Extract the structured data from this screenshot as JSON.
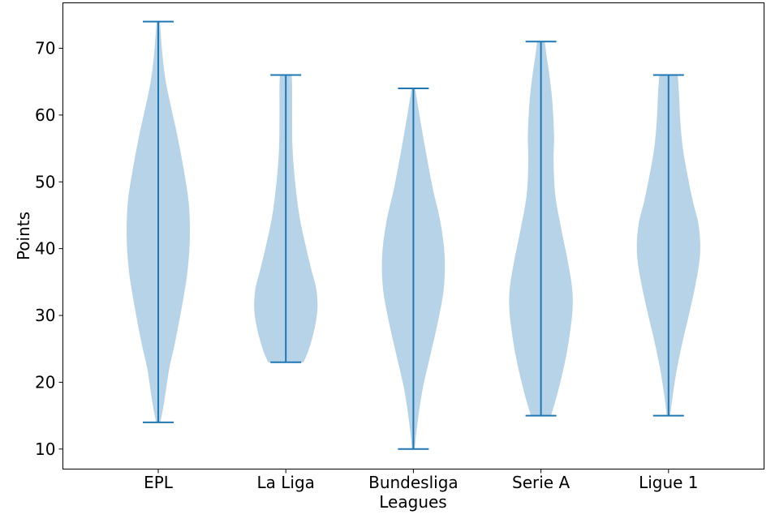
{
  "chart_data": {
    "type": "violin",
    "xlabel": "Leagues",
    "ylabel": "Points",
    "ylim": [
      7,
      76.8
    ],
    "yticks": [
      10,
      20,
      30,
      40,
      50,
      60,
      70
    ],
    "grid": false,
    "colors": {
      "body": "#1f77b4",
      "body_alpha": 0.32,
      "line": "#1f77b4"
    },
    "categories": [
      "EPL",
      "La Liga",
      "Bundesliga",
      "Serie A",
      "Ligue 1"
    ],
    "series": [
      {
        "category": "EPL",
        "min": 14,
        "max": 74,
        "density": [
          [
            14,
            0.05
          ],
          [
            17,
            0.14
          ],
          [
            22,
            0.26
          ],
          [
            26,
            0.4
          ],
          [
            32,
            0.58
          ],
          [
            37,
            0.7
          ],
          [
            42,
            0.75
          ],
          [
            47,
            0.72
          ],
          [
            52,
            0.6
          ],
          [
            57,
            0.45
          ],
          [
            61,
            0.31
          ],
          [
            65,
            0.18
          ],
          [
            69,
            0.1
          ],
          [
            74,
            0.04
          ]
        ]
      },
      {
        "category": "La Liga",
        "min": 23,
        "max": 66,
        "density": [
          [
            23,
            0.42
          ],
          [
            25,
            0.55
          ],
          [
            28,
            0.68
          ],
          [
            31,
            0.75
          ],
          [
            34,
            0.72
          ],
          [
            37,
            0.6
          ],
          [
            41,
            0.45
          ],
          [
            45,
            0.32
          ],
          [
            50,
            0.22
          ],
          [
            55,
            0.16
          ],
          [
            60,
            0.15
          ],
          [
            64,
            0.15
          ],
          [
            66,
            0.14
          ]
        ]
      },
      {
        "category": "Bundesliga",
        "min": 10,
        "max": 64,
        "density": [
          [
            10,
            0.03
          ],
          [
            14,
            0.1
          ],
          [
            19,
            0.22
          ],
          [
            24,
            0.4
          ],
          [
            29,
            0.58
          ],
          [
            34,
            0.72
          ],
          [
            39,
            0.74
          ],
          [
            44,
            0.64
          ],
          [
            49,
            0.46
          ],
          [
            54,
            0.31
          ],
          [
            59,
            0.17
          ],
          [
            64,
            0.04
          ]
        ]
      },
      {
        "category": "Serie A",
        "min": 15,
        "max": 71,
        "density": [
          [
            15,
            0.24
          ],
          [
            19,
            0.42
          ],
          [
            24,
            0.6
          ],
          [
            28,
            0.7
          ],
          [
            31,
            0.75
          ],
          [
            34,
            0.74
          ],
          [
            38,
            0.64
          ],
          [
            43,
            0.48
          ],
          [
            48,
            0.34
          ],
          [
            53,
            0.3
          ],
          [
            57,
            0.31
          ],
          [
            62,
            0.27
          ],
          [
            66,
            0.2
          ],
          [
            69,
            0.13
          ],
          [
            71,
            0.09
          ]
        ]
      },
      {
        "category": "Ligue 1",
        "min": 15,
        "max": 66,
        "density": [
          [
            15,
            0.04
          ],
          [
            18,
            0.1
          ],
          [
            22,
            0.2
          ],
          [
            26,
            0.33
          ],
          [
            30,
            0.48
          ],
          [
            34,
            0.62
          ],
          [
            38,
            0.73
          ],
          [
            41,
            0.75
          ],
          [
            44,
            0.7
          ],
          [
            47,
            0.58
          ],
          [
            51,
            0.45
          ],
          [
            55,
            0.34
          ],
          [
            59,
            0.28
          ],
          [
            63,
            0.25
          ],
          [
            66,
            0.22
          ]
        ]
      }
    ]
  }
}
